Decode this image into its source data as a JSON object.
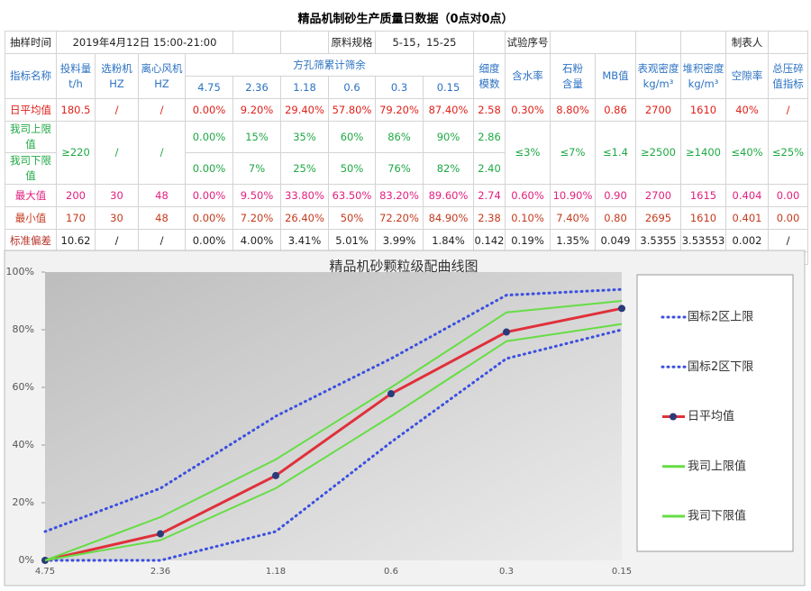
{
  "header": {
    "title": "精品机制砂生产质量日数据（0点对0点）"
  },
  "table": {
    "rows": [
      [
        "抽样时间",
        "2019年4月12日 15:00-21:00",
        "原料规格",
        "5-15，15-25",
        "试验序号",
        "制表人"
      ],
      [
        "指标名称",
        "投料量\nt/h",
        "选粉机\nHZ",
        "离心风机\nHZ",
        "方孔筛累计筛余",
        "细度\n模数",
        "含水率",
        "石粉\n含量",
        "MB值",
        "表观密度\nkg/m³",
        "堆积密度\nkg/m³",
        "空隙率",
        "总压碎\n值指标"
      ],
      [
        "4.75",
        "2.36",
        "1.18",
        "0.6",
        "0.3",
        "0.15"
      ],
      [
        "日平均值",
        "180.5",
        "/",
        "/",
        "0.00%",
        "9.20%",
        "29.40%",
        "57.80%",
        "79.20%",
        "87.40%",
        "2.58",
        "0.30%",
        "8.80%",
        "0.86",
        "2700",
        "1610",
        "40%",
        "/"
      ],
      [
        "我司上限值",
        "≥220",
        "/",
        "/",
        "0.00%",
        "15%",
        "35%",
        "60%",
        "86%",
        "90%",
        "2.86",
        "≤3%",
        "≤7%",
        "≤1.4",
        "≥2500",
        "≥1400",
        "≤40%",
        "≤25%"
      ],
      [
        "我司下限值",
        "0.00%",
        "7%",
        "25%",
        "50%",
        "76%",
        "82%",
        "2.40"
      ],
      [
        "最大值",
        "200",
        "30",
        "48",
        "0.00%",
        "9.50%",
        "33.80%",
        "63.50%",
        "83.20%",
        "89.60%",
        "2.74",
        "0.60%",
        "10.90%",
        "0.90",
        "2700",
        "1615",
        "0.404",
        "0.00"
      ],
      [
        "最小值",
        "170",
        "30",
        "48",
        "0.00%",
        "7.20%",
        "26.40%",
        "50%",
        "72.20%",
        "84.90%",
        "2.38",
        "0.10%",
        "7.40%",
        "0.80",
        "2695",
        "1610",
        "0.401",
        "0.00"
      ],
      [
        "标准偏差",
        "10.62",
        "/",
        "/",
        "0.00%",
        "4.00%",
        "3.41%",
        "5.01%",
        "3.99%",
        "1.84%",
        "0.142",
        "0.19%",
        "1.35%",
        "0.049",
        "3.5355",
        "3.53553",
        "0.002",
        "/"
      ]
    ]
  },
  "chart_data": {
    "type": "line",
    "title": "精品机砂颗粒级配曲线图",
    "categories": [
      "4.75",
      "2.36",
      "1.18",
      "0.6",
      "0.3",
      "0.15"
    ],
    "ylim": [
      0,
      100
    ],
    "yticks": [
      {
        "value": 0,
        "label": "0%"
      },
      {
        "value": 20,
        "label": "20%"
      },
      {
        "value": 40,
        "label": "40%"
      },
      {
        "value": 60,
        "label": "60%"
      },
      {
        "value": 80,
        "label": "80%"
      },
      {
        "value": 100,
        "label": "100%"
      }
    ],
    "legend": "right",
    "series": [
      {
        "name": "国标2区上限",
        "color": "#3b4fe0",
        "dash": "dotted",
        "values": [
          10,
          25,
          50,
          70,
          92,
          94
        ]
      },
      {
        "name": "国标2区下限",
        "color": "#3b4fe0",
        "dash": "dotted",
        "values": [
          0,
          0,
          10,
          41,
          70,
          80
        ]
      },
      {
        "name": "日平均值",
        "color": "#e0303a",
        "marker": true,
        "values": [
          0,
          9.2,
          29.4,
          57.8,
          79.2,
          87.4
        ]
      },
      {
        "name": "我司上限值",
        "color": "#66dd44",
        "values": [
          0,
          15,
          35,
          60,
          86,
          90
        ]
      },
      {
        "name": "我司下限值",
        "color": "#66dd44",
        "values": [
          0,
          7,
          25,
          50,
          76,
          82
        ]
      }
    ]
  }
}
